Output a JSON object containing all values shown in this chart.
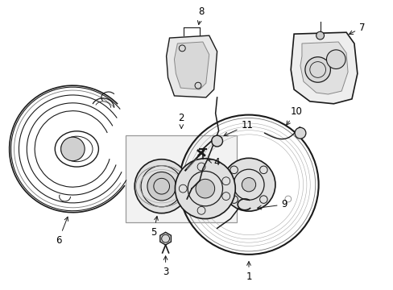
{
  "background_color": "#ffffff",
  "figsize": [
    4.89,
    3.6
  ],
  "dpi": 100,
  "line_color": "#1a1a1a",
  "light_gray": "#cccccc",
  "box_fill": "#e8e8e8",
  "label_fontsize": 8.5
}
